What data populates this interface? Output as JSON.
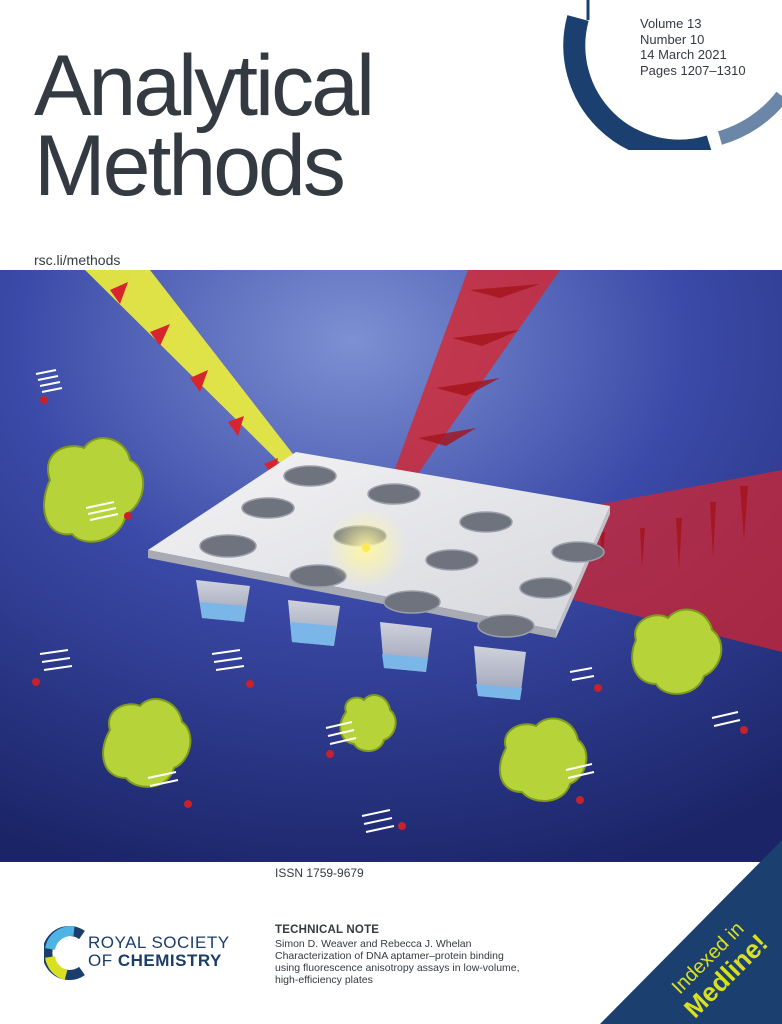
{
  "journal": {
    "title_line1": "Analytical",
    "title_line2": "Methods",
    "url": "rsc.li/methods"
  },
  "issue": {
    "volume": "Volume 13",
    "number": "Number 10",
    "date": "14 March 2021",
    "pages": "Pages 1207–1310"
  },
  "issn": "ISSN 1759-9679",
  "article": {
    "type": "TECHNICAL NOTE",
    "authors": "Simon D. Weaver and Rebecca J. Whelan",
    "title_line1": "Characterization of DNA aptamer–protein binding",
    "title_line2": "using fluorescence anisotropy assays in low-volume,",
    "title_line3": "high-efficiency plates"
  },
  "publisher": {
    "line1": "ROYAL SOCIETY",
    "line2_prefix": "OF ",
    "line2_bold": "CHEMISTRY"
  },
  "badge": {
    "line1": "Indexed in",
    "line2": "Medline!"
  },
  "colors": {
    "title": "#333a41",
    "arc_dark": "#1b3f6e",
    "arc_light": "#6b86a6",
    "badge_bg": "#1b3f6e",
    "badge_text": "#d9e021",
    "art_bg_dark": "#1c2a6e",
    "art_bg_light": "#6c7fc4",
    "protein": "#b6d43a",
    "laser_yellow": "#f0f03a",
    "laser_red": "#d8242c"
  }
}
